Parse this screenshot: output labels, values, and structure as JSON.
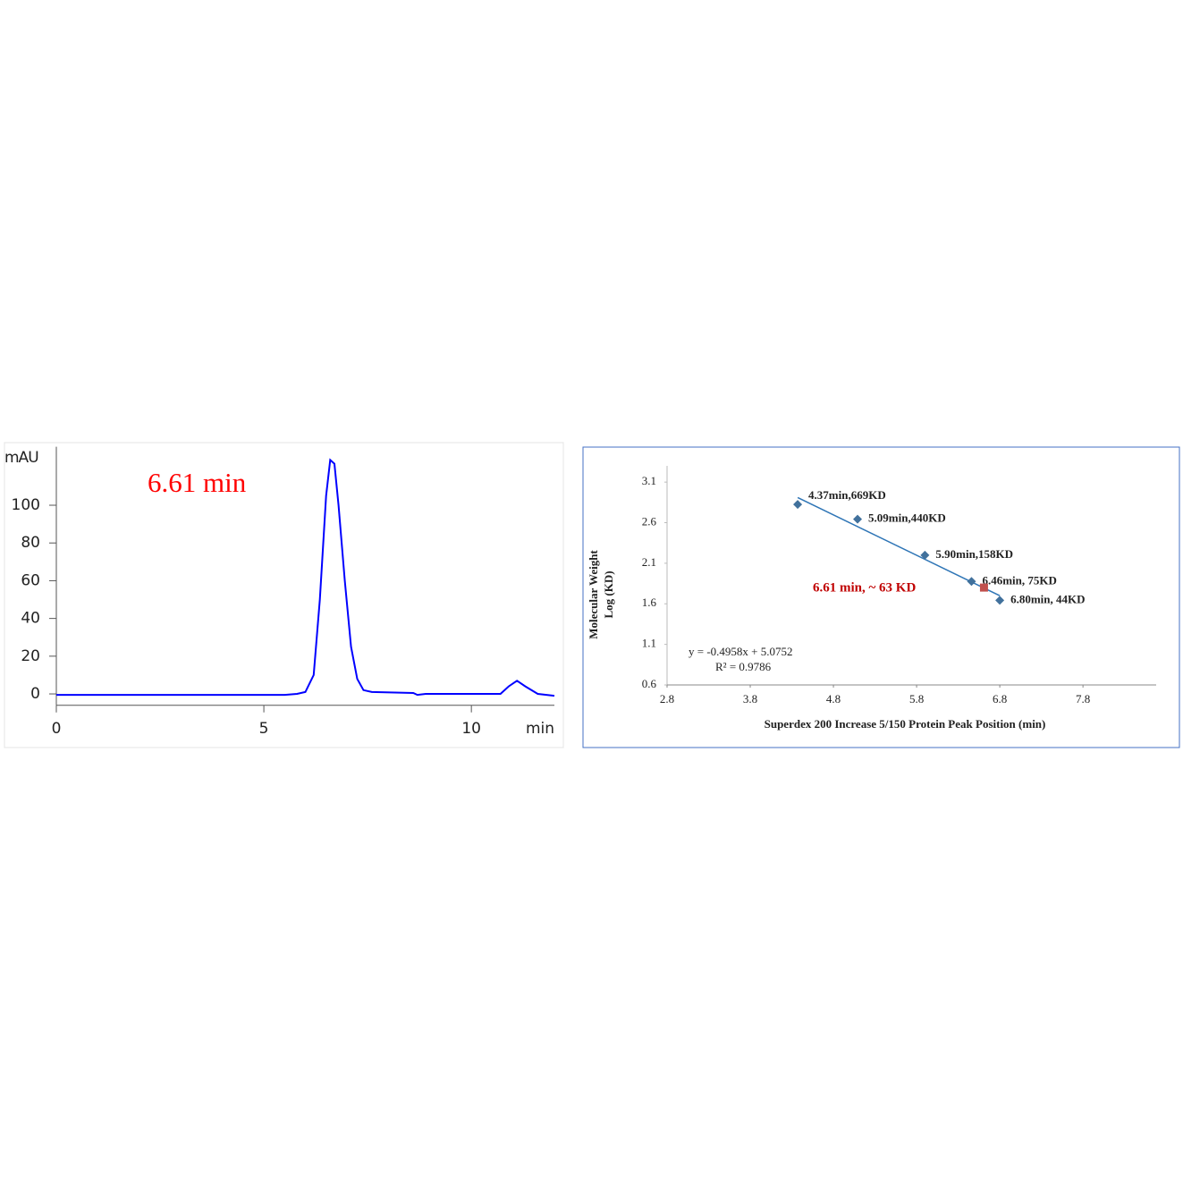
{
  "chart_data": [
    {
      "type": "line",
      "y_label": "mAU",
      "x_label": "min",
      "annotation": {
        "text": "6.61 min",
        "color": "#ff0000"
      },
      "color": "#0000ff",
      "x": [
        0,
        5.5,
        5.8,
        6.0,
        6.2,
        6.35,
        6.5,
        6.6,
        6.7,
        6.8,
        6.95,
        7.1,
        7.25,
        7.4,
        7.6,
        8.6,
        8.7,
        8.9,
        10.7,
        10.9,
        11.1,
        11.3,
        11.6,
        12
      ],
      "values": [
        -0.5,
        -0.5,
        0,
        1,
        10,
        50,
        105,
        124,
        122,
        100,
        60,
        25,
        8,
        2,
        1,
        0.5,
        -0.5,
        0,
        0,
        4,
        7,
        4,
        0,
        -1
      ],
      "xlim": [
        0,
        12
      ],
      "ylim": [
        -6,
        131
      ],
      "xticks": [
        0,
        5,
        10
      ],
      "yticks": [
        0,
        20,
        40,
        60,
        80,
        100
      ]
    },
    {
      "type": "scatter",
      "x_label": "Superdex 200 Increase 5/150  Protein Peak Position (min)",
      "y_label": [
        "Molecular Weight",
        "Log (KD)"
      ],
      "xlim": [
        2.8,
        8.68
      ],
      "ylim": [
        0.6,
        3.3
      ],
      "xticks": [
        2.8,
        3.8,
        4.8,
        5.8,
        6.8,
        7.8
      ],
      "yticks": [
        0.6,
        1.1,
        1.6,
        2.1,
        2.6,
        3.1
      ],
      "series": [
        {
          "color": "#41719c",
          "marker": "diamond",
          "x": [
            4.37,
            5.09,
            5.9,
            6.46,
            6.8
          ],
          "values": [
            2.825,
            2.643,
            2.199,
            1.875,
            1.643
          ],
          "labels": [
            "4.37min,669KD",
            "5.09min,440KD",
            "5.90min,158KD",
            "6.46min, 75KD",
            "6.80min, 44KD"
          ]
        },
        {
          "color": "#c0504d",
          "marker": "square",
          "x": [
            6.61
          ],
          "values": [
            1.8
          ]
        }
      ],
      "trendline": {
        "color": "#2e75b6",
        "x": [
          4.37,
          6.8
        ],
        "values": [
          2.91,
          1.7
        ]
      },
      "annotation": {
        "text": "6.61 min, ~ 63 KD",
        "color": "#c00000"
      },
      "equation": [
        "y = -0.4958x + 5.0752",
        "R² = 0.9786"
      ],
      "border_color": "#4472c4"
    }
  ]
}
